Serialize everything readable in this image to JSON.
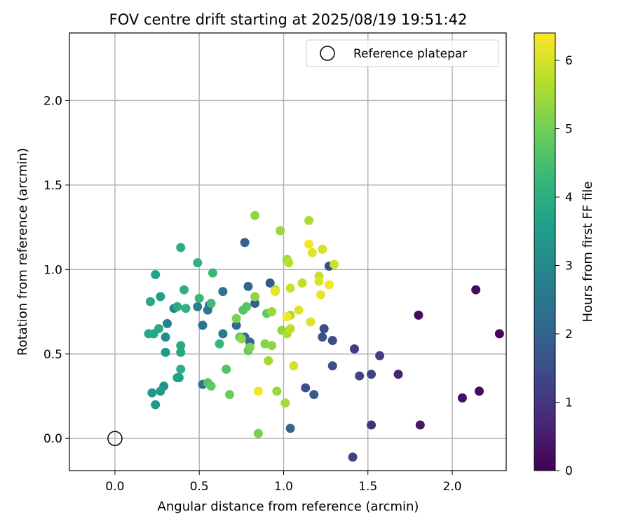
{
  "chart_data": {
    "type": "scatter",
    "title": "FOV centre drift starting at 2025/08/19 19:51:42",
    "xlabel": "Angular distance from reference (arcmin)",
    "ylabel": "Rotation from reference (arcmin)",
    "xlim": [
      -0.27,
      2.32
    ],
    "ylim": [
      -0.19,
      2.4
    ],
    "xticks": [
      "0.0",
      "0.5",
      "1.0",
      "1.5",
      "2.0"
    ],
    "yticks": [
      "0.0",
      "0.5",
      "1.0",
      "1.5",
      "2.0"
    ],
    "grid": true,
    "legend": {
      "position": "top-right",
      "entries": [
        "Reference platepar"
      ]
    },
    "colorbar": {
      "label": "Hours from first FF file",
      "range": [
        0,
        6.4
      ],
      "ticks": [
        "0",
        "1",
        "2",
        "3",
        "4",
        "5",
        "6"
      ],
      "colormap": "viridis"
    },
    "reference_point": {
      "x": 0.0,
      "y": 0.0,
      "marker": "open-circle",
      "label": "Reference platepar"
    },
    "series": [
      {
        "marker": "filled-circle",
        "points": [
          {
            "x": 2.14,
            "y": 0.88,
            "h": 0.2
          },
          {
            "x": 2.28,
            "y": 0.62,
            "h": 0.1
          },
          {
            "x": 1.8,
            "y": 0.73,
            "h": 0.2
          },
          {
            "x": 2.16,
            "y": 0.28,
            "h": 0.2
          },
          {
            "x": 2.06,
            "y": 0.24,
            "h": 0.3
          },
          {
            "x": 1.81,
            "y": 0.08,
            "h": 0.4
          },
          {
            "x": 1.68,
            "y": 0.38,
            "h": 0.6
          },
          {
            "x": 1.52,
            "y": 0.08,
            "h": 0.9
          },
          {
            "x": 1.57,
            "y": 0.49,
            "h": 1.2
          },
          {
            "x": 1.52,
            "y": 0.38,
            "h": 1.3
          },
          {
            "x": 1.45,
            "y": 0.37,
            "h": 1.3
          },
          {
            "x": 1.42,
            "y": 0.53,
            "h": 1.1
          },
          {
            "x": 1.41,
            "y": -0.11,
            "h": 1.3
          },
          {
            "x": 1.29,
            "y": 0.43,
            "h": 1.6
          },
          {
            "x": 1.29,
            "y": 0.58,
            "h": 1.5
          },
          {
            "x": 1.27,
            "y": 1.02,
            "h": 1.5
          },
          {
            "x": 1.24,
            "y": 0.65,
            "h": 1.5
          },
          {
            "x": 1.23,
            "y": 0.6,
            "h": 1.7
          },
          {
            "x": 1.13,
            "y": 0.3,
            "h": 1.6
          },
          {
            "x": 1.18,
            "y": 0.26,
            "h": 1.8
          },
          {
            "x": 1.04,
            "y": 0.06,
            "h": 2.1
          },
          {
            "x": 0.92,
            "y": 0.92,
            "h": 1.8
          },
          {
            "x": 0.83,
            "y": 0.8,
            "h": 1.9
          },
          {
            "x": 0.79,
            "y": 0.9,
            "h": 2.1
          },
          {
            "x": 0.77,
            "y": 1.16,
            "h": 2.0
          },
          {
            "x": 0.8,
            "y": 0.57,
            "h": 2.1
          },
          {
            "x": 0.77,
            "y": 0.6,
            "h": 2.3
          },
          {
            "x": 0.72,
            "y": 0.67,
            "h": 2.2
          },
          {
            "x": 0.64,
            "y": 0.87,
            "h": 2.4
          },
          {
            "x": 0.64,
            "y": 0.62,
            "h": 2.6
          },
          {
            "x": 0.55,
            "y": 0.76,
            "h": 2.6
          },
          {
            "x": 0.56,
            "y": 0.79,
            "h": 2.4
          },
          {
            "x": 0.52,
            "y": 0.67,
            "h": 2.4
          },
          {
            "x": 0.52,
            "y": 0.32,
            "h": 2.5
          },
          {
            "x": 0.49,
            "y": 0.78,
            "h": 2.7
          },
          {
            "x": 0.35,
            "y": 0.77,
            "h": 2.8
          },
          {
            "x": 0.31,
            "y": 0.68,
            "h": 2.9
          },
          {
            "x": 0.3,
            "y": 0.6,
            "h": 3.1
          },
          {
            "x": 0.3,
            "y": 0.51,
            "h": 3.4
          },
          {
            "x": 0.29,
            "y": 0.31,
            "h": 3.3
          },
          {
            "x": 0.27,
            "y": 0.28,
            "h": 3.5
          },
          {
            "x": 0.22,
            "y": 0.27,
            "h": 3.4
          },
          {
            "x": 0.24,
            "y": 0.2,
            "h": 3.4
          },
          {
            "x": 0.37,
            "y": 0.36,
            "h": 3.6
          },
          {
            "x": 0.38,
            "y": 0.36,
            "h": 3.7
          },
          {
            "x": 0.39,
            "y": 0.51,
            "h": 3.8
          },
          {
            "x": 0.39,
            "y": 0.55,
            "h": 3.9
          },
          {
            "x": 0.39,
            "y": 0.41,
            "h": 4.0
          },
          {
            "x": 0.26,
            "y": 0.65,
            "h": 3.9
          },
          {
            "x": 0.23,
            "y": 0.62,
            "h": 3.8
          },
          {
            "x": 0.2,
            "y": 0.62,
            "h": 3.8
          },
          {
            "x": 0.21,
            "y": 0.81,
            "h": 3.8
          },
          {
            "x": 0.27,
            "y": 0.84,
            "h": 3.6
          },
          {
            "x": 0.24,
            "y": 0.97,
            "h": 3.7
          },
          {
            "x": 0.39,
            "y": 1.13,
            "h": 4.0
          },
          {
            "x": 0.37,
            "y": 0.78,
            "h": 3.9
          },
          {
            "x": 0.41,
            "y": 0.88,
            "h": 4.0
          },
          {
            "x": 0.42,
            "y": 0.77,
            "h": 4.1
          },
          {
            "x": 0.49,
            "y": 1.04,
            "h": 4.1
          },
          {
            "x": 0.5,
            "y": 0.83,
            "h": 4.3
          },
          {
            "x": 0.57,
            "y": 0.8,
            "h": 4.4
          },
          {
            "x": 0.58,
            "y": 0.98,
            "h": 4.3
          },
          {
            "x": 0.62,
            "y": 0.56,
            "h": 4.2
          },
          {
            "x": 0.66,
            "y": 0.41,
            "h": 4.6
          },
          {
            "x": 0.55,
            "y": 0.33,
            "h": 4.6
          },
          {
            "x": 0.57,
            "y": 0.31,
            "h": 4.8
          },
          {
            "x": 0.68,
            "y": 0.26,
            "h": 4.9
          },
          {
            "x": 0.76,
            "y": 0.76,
            "h": 4.6
          },
          {
            "x": 0.78,
            "y": 0.78,
            "h": 4.7
          },
          {
            "x": 0.74,
            "y": 0.6,
            "h": 4.8
          },
          {
            "x": 0.72,
            "y": 0.71,
            "h": 5.1
          },
          {
            "x": 0.75,
            "y": 0.59,
            "h": 5.3
          },
          {
            "x": 0.79,
            "y": 0.52,
            "h": 4.9
          },
          {
            "x": 0.8,
            "y": 0.54,
            "h": 5.1
          },
          {
            "x": 0.83,
            "y": 0.84,
            "h": 5.3
          },
          {
            "x": 0.83,
            "y": 1.32,
            "h": 5.3
          },
          {
            "x": 0.85,
            "y": 0.03,
            "h": 5.1
          },
          {
            "x": 0.9,
            "y": 0.74,
            "h": 4.8
          },
          {
            "x": 0.89,
            "y": 0.56,
            "h": 5.2
          },
          {
            "x": 0.93,
            "y": 0.55,
            "h": 5.3
          },
          {
            "x": 0.91,
            "y": 0.46,
            "h": 5.5
          },
          {
            "x": 0.93,
            "y": 0.75,
            "h": 5.4
          },
          {
            "x": 0.95,
            "y": 0.88,
            "h": 5.6
          },
          {
            "x": 0.96,
            "y": 0.28,
            "h": 5.4
          },
          {
            "x": 0.99,
            "y": 0.64,
            "h": 5.3
          },
          {
            "x": 0.98,
            "y": 1.23,
            "h": 5.4
          },
          {
            "x": 1.01,
            "y": 0.21,
            "h": 5.5
          },
          {
            "x": 1.02,
            "y": 0.62,
            "h": 5.6
          },
          {
            "x": 1.02,
            "y": 1.06,
            "h": 5.5
          },
          {
            "x": 1.03,
            "y": 1.04,
            "h": 5.7
          },
          {
            "x": 1.04,
            "y": 0.73,
            "h": 5.6
          },
          {
            "x": 1.04,
            "y": 0.89,
            "h": 5.9
          },
          {
            "x": 1.04,
            "y": 0.65,
            "h": 5.8
          },
          {
            "x": 1.06,
            "y": 0.43,
            "h": 6.0
          },
          {
            "x": 1.09,
            "y": 0.76,
            "h": 6.1
          },
          {
            "x": 1.11,
            "y": 0.92,
            "h": 5.8
          },
          {
            "x": 1.15,
            "y": 1.29,
            "h": 5.6
          },
          {
            "x": 1.15,
            "y": 1.15,
            "h": 6.3
          },
          {
            "x": 1.17,
            "y": 1.1,
            "h": 6.1
          },
          {
            "x": 1.16,
            "y": 0.69,
            "h": 6.1
          },
          {
            "x": 1.21,
            "y": 0.96,
            "h": 5.8
          },
          {
            "x": 1.21,
            "y": 0.93,
            "h": 6.1
          },
          {
            "x": 1.23,
            "y": 1.12,
            "h": 6.0
          },
          {
            "x": 1.22,
            "y": 0.85,
            "h": 6.2
          },
          {
            "x": 1.27,
            "y": 0.91,
            "h": 6.3
          },
          {
            "x": 1.3,
            "y": 1.03,
            "h": 5.9
          },
          {
            "x": 0.85,
            "y": 0.28,
            "h": 6.3
          },
          {
            "x": 1.02,
            "y": 0.72,
            "h": 6.3
          },
          {
            "x": 0.95,
            "y": 0.87,
            "h": 6.2
          }
        ]
      }
    ]
  }
}
